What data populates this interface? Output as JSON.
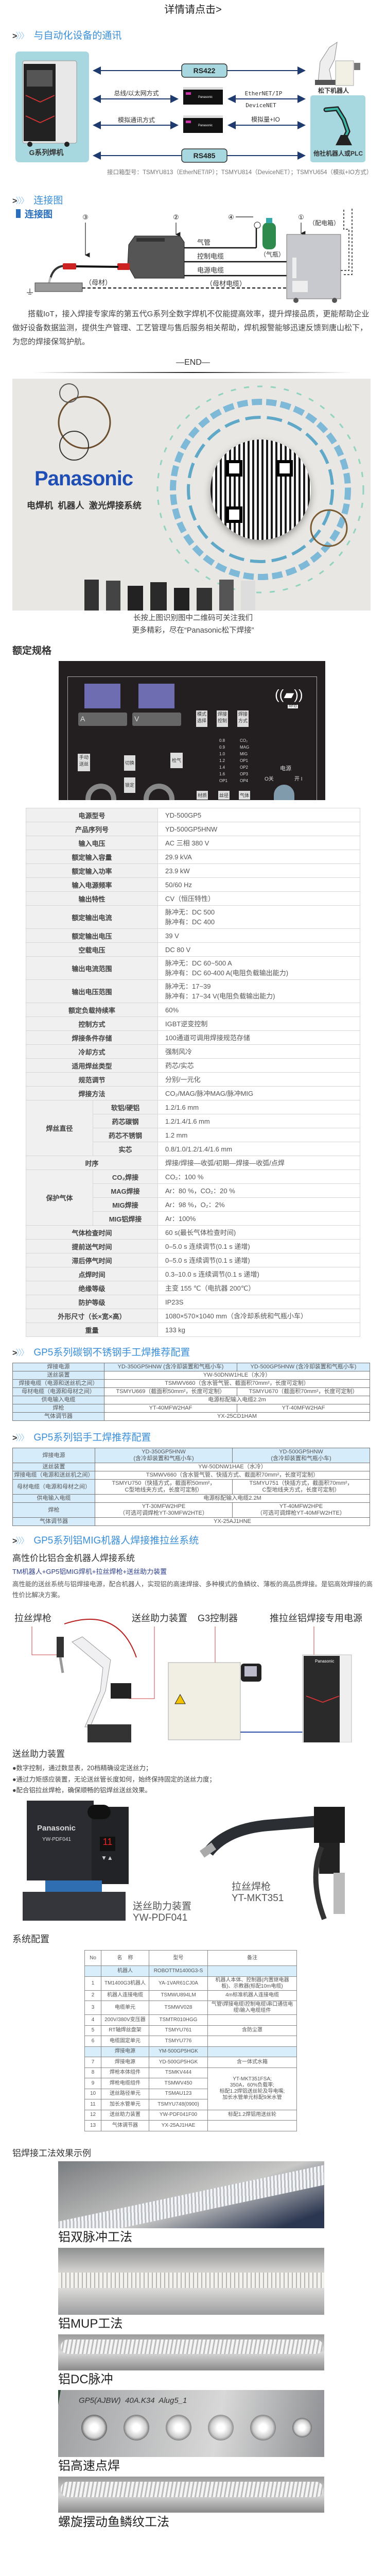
{
  "top_link": "详情请点击>",
  "comm": {
    "heading": "与自动化设备的通讯",
    "left_box_label": "G系列焊机",
    "rs422": "RS422",
    "rs485": "RS485",
    "bus_label": "总线/以太网方式",
    "ethernet_label": "EtherNET/IP",
    "devicenet_label": "DeviceNET",
    "analog_label": "模拟通讯方式",
    "analog_io_label": "模拟量+IO",
    "panasonic_robot": "松下机器人",
    "other_robot": "他社机器人或PLC",
    "caption": "接口箱型号：TSMYU813（EtherNET/IP）；TSMYU814（DeviceNET）；TSMYU654（模拟+IO方式）",
    "box_brand": "Panasonic"
  },
  "connection": {
    "heading": "连接图",
    "inner_title": "连接图",
    "num1": "①",
    "num2": "②",
    "num3": "③",
    "num4": "④",
    "gas_pipe": "气管",
    "control_cable": "控制电缆",
    "power_cable": "电源电缆",
    "base_cable": "（母材电缆）",
    "base_metal": "（母材）",
    "gas_bottle": "（气瓶）",
    "distribution_box": "（配电箱）"
  },
  "intro_paragraph": "搭载IoT，接入焊接专家库的第五代G系列全数字焊机不仅能提高效率，提升焊接品质，更能帮助企业做好设备数据监测，提供生产管理、工艺管理与售后服务相关帮助，焊机报警能够迅速反馈到唐山松下，为您的焊接保驾护航。",
  "end_mark": "—END—",
  "banner": {
    "logo": "Panasonic",
    "tagline": "电焊机  机器人  激光焊接系统",
    "caption_line1": "长按上图识别图中二维码可关注我们",
    "caption_line2": "更多精彩，尽在“Panasonic松下焊接”"
  },
  "spec": {
    "heading": "额定规格",
    "panel": {
      "amp": "A",
      "volt": "V",
      "mode_select": "模式选择",
      "weld_control": "焊接控制",
      "weld_method": "焊接方式",
      "manual_feed": "手动送丝",
      "switch": "切换",
      "gas_check": "检气",
      "lock": "锁定",
      "material": "材质",
      "wire_dia": "丝径",
      "gas": "气体",
      "power": "电源",
      "off": "O关",
      "on": "开 I",
      "rfid": "RFID",
      "dia_list": [
        "0.8",
        "0.9",
        "1.0",
        "1.2",
        "1.4",
        "1.6",
        "OP1"
      ],
      "gas_list": [
        "CO₂",
        "MAG",
        "MIG",
        "OP1",
        "OP2",
        "OP3",
        "OP4"
      ]
    },
    "rows": [
      {
        "label": "电源型号",
        "value": [
          "YD-500GP5"
        ]
      },
      {
        "label": "产品序列号",
        "value": [
          "YD-500GP5HNW"
        ]
      },
      {
        "label": "输入电压",
        "value": [
          "AC 三相 380 V"
        ]
      },
      {
        "label": "额定输入容量",
        "value": [
          "29.9 kVA"
        ]
      },
      {
        "label": "额定输入功率",
        "value": [
          "23.9 kW"
        ]
      },
      {
        "label": "输入电源频率",
        "value": [
          "50/60 Hz"
        ]
      },
      {
        "label": "输出特性",
        "value": [
          "CV（恒压特性）"
        ]
      },
      {
        "label": "额定输出电流",
        "value": [
          "脉冲无：DC 500",
          "脉冲有：DC 400"
        ]
      },
      {
        "label": "额定输出电压",
        "value": [
          "39 V"
        ]
      },
      {
        "label": "空载电压",
        "value": [
          "DC 80 V"
        ]
      },
      {
        "label": "输出电流范围",
        "value": [
          "脉冲无：DC 60~500 A",
          "脉冲有：DC 60-400 A(电阻负载输出能力)"
        ]
      },
      {
        "label": "输出电压范围",
        "value": [
          "脉冲无：17~39",
          "脉冲有：17~34 V(电阻负载输出能力)"
        ]
      },
      {
        "label": "额定负载持续率",
        "value": [
          "60%"
        ]
      },
      {
        "label": "控制方式",
        "value": [
          "IGBT逆变控制"
        ]
      },
      {
        "label": "焊接条件存储",
        "value": [
          "100通道可调用焊接规范存储"
        ]
      },
      {
        "label": "冷却方式",
        "value": [
          "强制风冷"
        ]
      },
      {
        "label": "适用焊丝类型",
        "value": [
          "药芯/实芯"
        ]
      },
      {
        "label": "规范调节",
        "value": [
          "分别/一元化"
        ]
      },
      {
        "label": "焊接方法",
        "value": [
          "CO₂/MAG/脉冲MAG/脉冲MIG"
        ]
      },
      {
        "label": "焊丝直径",
        "sub": [
          {
            "label": "软铝/硬铝",
            "value": [
              "1.2/1.6 mm"
            ]
          },
          {
            "label": "药芯碳钢",
            "value": [
              "1.2/1.4/1.6 mm"
            ]
          },
          {
            "label": "药芯不锈钢",
            "value": [
              "1.2 mm"
            ]
          },
          {
            "label": "实芯",
            "value": [
              "0.8/1.0/1.2/1.4/1.6 mm"
            ]
          }
        ]
      },
      {
        "label": "时序",
        "value": [
          "焊接/焊接—收弧/初期—焊接—收弧/点焊"
        ]
      },
      {
        "label": "保护气体",
        "sub": [
          {
            "label": "CO₂焊接",
            "value": [
              "CO₂：100 %"
            ]
          },
          {
            "label": "MAG焊接",
            "value": [
              "Ar：80 %，CO₂：20 %"
            ]
          },
          {
            "label": "MIG焊接",
            "value": [
              "Ar：98 %，O₂：2%"
            ]
          },
          {
            "label": "MIG铝焊接",
            "value": [
              "Ar：100%"
            ]
          }
        ]
      },
      {
        "label": "气体检查时间",
        "value": [
          "60 s(最长气体检查时间)"
        ]
      },
      {
        "label": "提前送气时间",
        "value": [
          "0–5.0 s 连续调节(0.1 s 递增)"
        ]
      },
      {
        "label": "滞后停气时间",
        "value": [
          "0–5.0 s 连续调节(0.1 s 递增)"
        ]
      },
      {
        "label": "点焊时间",
        "value": [
          "0.3–10.0 s 连续调节(0.1 s 递增)"
        ]
      },
      {
        "label": "绝缘等级",
        "value": [
          "主变 155 ℃（电抗器 200℃）"
        ]
      },
      {
        "label": "防护等级",
        "value": [
          "IP23S"
        ]
      },
      {
        "label": "外形尺寸（长×宽×高）",
        "value": [
          "1080×570×1040 mm（含冷却系统和气瓶小车）"
        ]
      },
      {
        "label": "重量",
        "value": [
          "133 kg"
        ]
      }
    ]
  },
  "steel_config": {
    "heading": "GP5系列碳钢不锈钢手工焊推荐配置",
    "rows": [
      {
        "label": "焊接电源",
        "cells": [
          "YD-350GP5HNW (含冷却装置和气瓶小车)",
          "YD-500GP5HNW (含冷却装置和气瓶小车)"
        ],
        "head": true
      },
      {
        "label": "送丝装置",
        "cells": [
          "YW-50DNW1HLE（水冷）"
        ]
      },
      {
        "label": "焊接电缆（电源和送丝机之间）",
        "cells": [
          "TSMWV660（含水管气管、截面积70mm²，长度可定制）"
        ]
      },
      {
        "label": "母材电缆（电源和母材之间）",
        "cells": [
          "TSMYU669（截面积50mm²，长度可定制）",
          "TSMYU670（截面积70mm²，长度可定制）"
        ]
      },
      {
        "label": "供电输入电缆",
        "cells": [
          "电源标配输入电缆2.2m"
        ]
      },
      {
        "label": "焊枪",
        "cells": [
          "YT-40MFW2HAF",
          "YT-40MFW2HAF"
        ]
      },
      {
        "label": "气体调节器",
        "cells": [
          "YX-25CD1HAM"
        ]
      }
    ]
  },
  "alu_config": {
    "heading": "GP5系列铝手工焊推荐配置",
    "rows": [
      {
        "label": "焊接电源",
        "cells": [
          "YD-350GP5HNW\n(含冷却装置和气瓶小车)",
          "YD-500GP5HNW\n(含冷却装置和气瓶小车)"
        ],
        "head": true
      },
      {
        "label": "送丝装置",
        "cells": [
          "YW-50DNW1HAE（水冷）"
        ]
      },
      {
        "label": "焊接电缆（电源和送丝机之间）",
        "cells": [
          "TSMWV660（含水管气管、快插方式、截面积70mm²，长度可定制）"
        ]
      },
      {
        "label": "母材电缆（电源和母材之间）",
        "cells": [
          "TSMYU750（快插方式，截面积50mm²，\nC型地线夹方式，长度可定制）",
          "TSMYU751（快插方式，截面积70mm²，\nC型地线夹方式，长度可定制）"
        ]
      },
      {
        "label": "供电输入电缆",
        "cells": [
          "电源标配输入电缆2.2M"
        ]
      },
      {
        "label": "焊枪",
        "cells": [
          "YT-30MFW2HPE\n（可选可调焊枪YT-30MFW2HTE）",
          "YT-40MFW2HPE\n（可选可调焊枪YT-40MFW2HTE）"
        ]
      },
      {
        "label": "气体调节器",
        "cells": [
          "YX-25AJ1HNE"
        ]
      }
    ]
  },
  "robot_system": {
    "heading": "GP5系列铝MIG机器人焊接推拉丝系统",
    "title": "高性价比铝合金机器人焊接系统",
    "combo": "TM机器人+GP5铝MIG焊机+拉丝焊枪+送丝助力装置",
    "description": "高性能的送丝系统与铝焊接电源，配合机器人，实现铝的高速焊接、多种模式的鱼鳞纹、薄板的高品质焊接。是铝高效焊接的高性价比解决方案。",
    "label_torch": "拉丝焊枪",
    "label_feeder": "送丝助力装置",
    "label_controller": "G3控制器",
    "label_power": "推拉丝铝焊接专用电源",
    "brand": "Panasonic"
  },
  "feeder": {
    "heading": "送丝助力装置",
    "bullets": [
      "●数字控制，通过数显表，20档精确设定送丝力；",
      "●通过力矩感应装置，无论送丝管长度如何，始终保持固定的送丝力度；",
      "●配合铝拉丝焊枪，确保顺畅的铝焊丝送丝效果。"
    ],
    "device_brand": "Panasonic",
    "device_model": "YW-PDF041",
    "display_value": "11",
    "feeder_caption_1": "送丝助力装置",
    "feeder_caption_2": "YW-PDF041",
    "torch_caption_1": "拉丝焊枪",
    "torch_caption_2": "YT-MKT351"
  },
  "system_config": {
    "heading": "系统配置",
    "columns": [
      "No",
      "名    称",
      "型号",
      "备注"
    ],
    "rows": [
      {
        "no": "",
        "name": "机器人",
        "model": "ROBOTTM1400G3-S",
        "note": "",
        "group": true
      },
      {
        "no": "1",
        "name": "TM1400G3机器人",
        "model": "YA-1VAR61CJ0A",
        "note": "机器人本体、控制器(内置继电器板)、示教器(标配10m电缆)"
      },
      {
        "no": "2",
        "name": "机器人连接电缆",
        "model": "TSMWU894LM",
        "note": "4m标准机器人连接电缆"
      },
      {
        "no": "3",
        "name": "电缆单元",
        "model": "TSMWV028",
        "note": "气管\\焊接电缆\\控制电缆\\串口通信电缆\\输入电缆组件"
      },
      {
        "no": "4",
        "name": "200V/380V变压器",
        "model": "TSMTR010HGG",
        "note": ""
      },
      {
        "no": "5",
        "name": "RT轴焊丝盘架",
        "model": "TSMYU761",
        "note": "含防尘罩"
      },
      {
        "no": "6",
        "name": "电缆固定单元",
        "model": "TSMYU776",
        "note": ""
      },
      {
        "no": "",
        "name": "焊接电源",
        "model": "YM-500GP5HGK",
        "note": "",
        "group": true
      },
      {
        "no": "7",
        "name": "焊接电源",
        "model": "YD-500GP5HGK",
        "note": "含一体式水箱"
      },
      {
        "no": "8",
        "name": "焊枪本体组件",
        "model": "TSMKV444",
        "note": "YT-MKT351FSA;\n350A，60%负载率;\n标配1.2焊铝送丝轮及导电嘴;\n加长水管单元标配9米水管",
        "span": 4
      },
      {
        "no": "9",
        "name": "焊枪电缆组件",
        "model": "TSMWV450"
      },
      {
        "no": "10",
        "name": "送丝路径单元",
        "model": "TSMAU123"
      },
      {
        "no": "11",
        "name": "加长水管单元",
        "model": "TSMYU748(0900)"
      },
      {
        "no": "12",
        "name": "送丝助力装置",
        "model": "YW-PDF041F00",
        "note": "标配1.2焊铝用送丝轮"
      },
      {
        "no": "13",
        "name": "气体调节器",
        "model": "YX-25AJ1HAE",
        "note": ""
      }
    ]
  },
  "weld_examples": {
    "heading": "铝焊接工法效果示例",
    "items": [
      {
        "caption": "铝双脉冲工法"
      },
      {
        "caption": "铝MUP工法"
      },
      {
        "caption": "铝DC脉冲"
      },
      {
        "caption": "铝高速点焊",
        "marking": "GP5(AJBW)  40A.K34  Alug5_1"
      },
      {
        "caption": "螺旋摆动鱼鳞纹工法"
      }
    ]
  },
  "colors": {
    "accent": "#3a8fd8",
    "teal_box": "#a7d8df",
    "table_blue": "#d6ecfa",
    "logo_blue": "#1f4fb5"
  }
}
